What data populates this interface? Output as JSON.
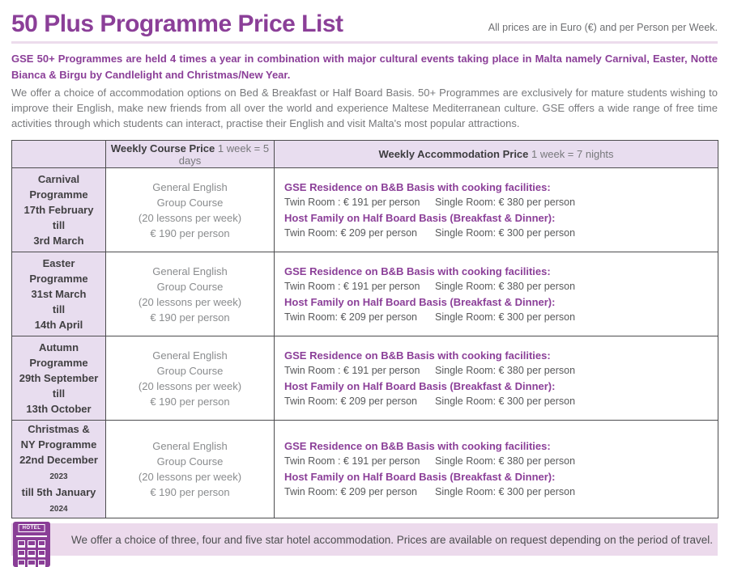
{
  "header": {
    "title": "50 Plus Programme Price List",
    "note": "All prices are in Euro (€) and per Person per Week."
  },
  "intro": {
    "bold_text": "GSE 50+ Programmes are held 4  times a year in combination with major cultural events taking place in Malta namely Carnival, Easter, Notte Bianca & Birgu by Candlelight and Christmas/New Year.",
    "body_text": "We offer a choice of accommodation options on Bed & Breakfast or Half Board Basis.  50+ Programmes are exclusively for mature students wishing to improve their English, make new friends from all over the world and experience Maltese Mediterranean culture. GSE offers a wide range of free time activities through which students can interact, practise their English and visit Malta's most popular attractions."
  },
  "table": {
    "columns": {
      "course": {
        "bold": "Weekly Course Price",
        "normal": " 1 week = 5 days"
      },
      "accommodation": {
        "bold": "Weekly Accommodation Price",
        "normal": " 1 week = 7 nights"
      }
    },
    "course_lines": [
      "General English",
      "Group Course",
      "(20 lessons per week)",
      "€ 190 per person"
    ],
    "accommodation": {
      "residence_heading": "GSE Residence on B&B Basis with cooking facilities:",
      "residence_twin": "Twin Room : € 191 per person",
      "residence_single": "Single Room: € 380 per person",
      "host_heading": "Host Family on Half Board Basis (Breakfast & Dinner):",
      "host_twin": "Twin Room: € 209 per person",
      "host_single": "Single Room: € 300 per person"
    },
    "rows": [
      {
        "programme_lines": [
          {
            "text": "Carnival"
          },
          {
            "text": "Programme"
          },
          {
            "text": "17th February"
          },
          {
            "text": "till"
          },
          {
            "text": "3rd March"
          }
        ]
      },
      {
        "programme_lines": [
          {
            "text": "Easter"
          },
          {
            "text": "Programme"
          },
          {
            "text": "31st March"
          },
          {
            "text": "till"
          },
          {
            "text": "14th April"
          }
        ]
      },
      {
        "programme_lines": [
          {
            "text": "Autumn"
          },
          {
            "text": "Programme"
          },
          {
            "text": "29th September"
          },
          {
            "text": "till"
          },
          {
            "text": "13th October"
          }
        ]
      },
      {
        "programme_lines": [
          {
            "text": "Christmas &"
          },
          {
            "text": "NY Programme"
          },
          {
            "text": "22nd December ",
            "suffix_small": "2023"
          },
          {
            "text": "till 5th January ",
            "suffix_small": "2024"
          }
        ]
      }
    ]
  },
  "footer": {
    "hotel_icon_label": "HOTEL",
    "text": "We offer a choice of three, four and five star hotel accommodation. Prices are available on request depending on the period of travel."
  },
  "colors": {
    "accent_purple": "#8b3f98",
    "icon_purple": "#8a3e97",
    "lavender_cell_bg": "#e8ddef",
    "footer_bar_bg": "#ecdaec",
    "divider": "#ecdcec",
    "body_gray": "#77787b",
    "price_text_gray": "#58595b",
    "programme_text": "#414042"
  }
}
